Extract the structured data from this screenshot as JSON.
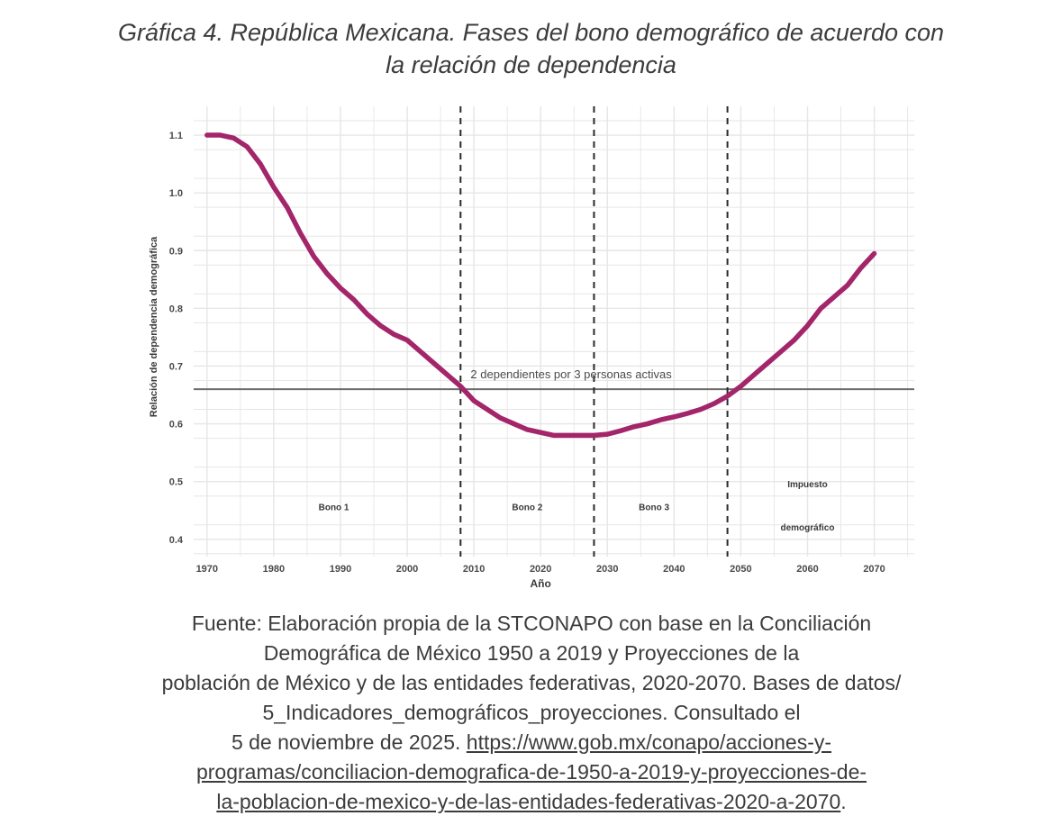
{
  "caption": {
    "line1": "Gráfica 4. República Mexicana. Fases del bono demográfico de acuerdo con",
    "line2": "la relación de dependencia"
  },
  "chart_data": {
    "type": "line",
    "title": "",
    "xlabel": "Año",
    "ylabel": "Relación de dependencia demográfica",
    "xlim": [
      1968,
      2076
    ],
    "ylim": [
      0.37,
      1.15
    ],
    "x_ticks": [
      1970,
      1980,
      1990,
      2000,
      2010,
      2020,
      2030,
      2040,
      2050,
      2060,
      2070
    ],
    "y_ticks": [
      0.4,
      0.5,
      0.6,
      0.7,
      0.8,
      0.9,
      1.0,
      1.1
    ],
    "grid": true,
    "series": [
      {
        "color": "#a3256a",
        "x": [
          1970,
          1972,
          1974,
          1976,
          1978,
          1980,
          1982,
          1984,
          1986,
          1988,
          1990,
          1992,
          1994,
          1996,
          1998,
          2000,
          2002,
          2004,
          2006,
          2008,
          2010,
          2012,
          2014,
          2016,
          2018,
          2020,
          2022,
          2024,
          2026,
          2028,
          2030,
          2032,
          2034,
          2036,
          2038,
          2040,
          2042,
          2044,
          2046,
          2048,
          2050,
          2052,
          2054,
          2056,
          2058,
          2060,
          2062,
          2064,
          2066,
          2068,
          2070
        ],
        "values": [
          1.1,
          1.1,
          1.095,
          1.08,
          1.05,
          1.01,
          0.975,
          0.93,
          0.89,
          0.86,
          0.835,
          0.815,
          0.79,
          0.77,
          0.755,
          0.745,
          0.725,
          0.705,
          0.685,
          0.665,
          0.64,
          0.625,
          0.61,
          0.6,
          0.59,
          0.585,
          0.58,
          0.58,
          0.58,
          0.58,
          0.582,
          0.588,
          0.595,
          0.6,
          0.607,
          0.612,
          0.618,
          0.625,
          0.635,
          0.648,
          0.665,
          0.685,
          0.705,
          0.725,
          0.745,
          0.77,
          0.8,
          0.82,
          0.84,
          0.87,
          0.895
        ]
      }
    ],
    "reference_line": {
      "y": 0.66,
      "label": "2 dependientes por 3 personas activas"
    },
    "phase_boundaries": [
      2008,
      2028,
      2048
    ],
    "phases": [
      {
        "label": "Bono 1",
        "x": 1989,
        "y": 0.45
      },
      {
        "label": "Bono 2",
        "x": 2018,
        "y": 0.45
      },
      {
        "label": "Bono 3",
        "x": 2037,
        "y": 0.45
      },
      {
        "label": "Impuesto",
        "x": 2060,
        "y": 0.49
      },
      {
        "label": "demográfico",
        "x": 2060,
        "y": 0.415
      }
    ],
    "line_color": "#a3256a",
    "grid_color": "#e6e6e6"
  },
  "source": {
    "line1": "Fuente: Elaboración propia de la STCONAPO con base en la Conciliación",
    "line2": "Demográfica de México 1950 a 2019 y Proyecciones de la",
    "line3": "población de México y de las entidades federativas, 2020-2070. Bases de datos/",
    "line4": "5_Indicadores_demográficos_proyecciones. Consultado el",
    "line5_prefix": "5 de noviembre de 2025. ",
    "link_part1": "https://www.gob.mx/conapo/acciones-y-",
    "link_part2": "programas/conciliacion-demografica-de-1950-a-2019-y-proyecciones-de-",
    "link_part3": "la-poblacion-de-mexico-y-de-las-entidades-federativas-2020-a-2070",
    "end_period": "."
  }
}
